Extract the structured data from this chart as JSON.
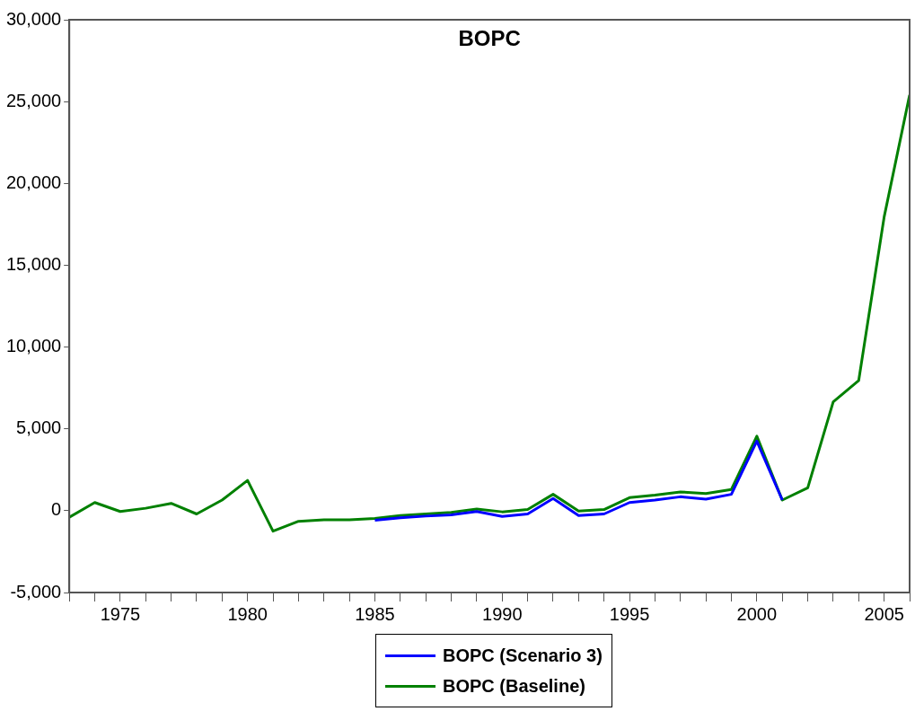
{
  "chart_data": {
    "type": "line",
    "title": "BOPC",
    "x": [
      1973,
      1974,
      1975,
      1976,
      1977,
      1978,
      1979,
      1980,
      1981,
      1982,
      1983,
      1984,
      1985,
      1986,
      1987,
      1988,
      1989,
      1990,
      1991,
      1992,
      1993,
      1994,
      1995,
      1996,
      1997,
      1998,
      1999,
      2000,
      2001,
      2002,
      2003,
      2004,
      2005,
      2006
    ],
    "series": [
      {
        "name": "BOPC (Scenario 3)",
        "color": "#0000ff",
        "values": [
          null,
          null,
          null,
          null,
          null,
          null,
          null,
          null,
          null,
          null,
          null,
          null,
          -580,
          -430,
          -330,
          -250,
          -50,
          -350,
          -200,
          750,
          -300,
          -200,
          500,
          650,
          850,
          700,
          1000,
          4250,
          650,
          null,
          null,
          null,
          null,
          null
        ]
      },
      {
        "name": "BOPC (Baseline)",
        "color": "#008000",
        "values": [
          -400,
          500,
          -50,
          150,
          450,
          -200,
          650,
          1850,
          -1250,
          -650,
          -550,
          -550,
          -480,
          -300,
          -200,
          -100,
          100,
          -70,
          70,
          1000,
          -20,
          70,
          800,
          950,
          1150,
          1050,
          1300,
          4550,
          650,
          1400,
          6650,
          7950,
          17950,
          25400
        ]
      }
    ],
    "xlim": [
      1973,
      2006
    ],
    "xticks": [
      {
        "value": 1973,
        "label": null
      },
      {
        "value": 1974,
        "label": null
      },
      1975,
      {
        "value": 1976,
        "label": null
      },
      {
        "value": 1977,
        "label": null
      },
      {
        "value": 1978,
        "label": null
      },
      {
        "value": 1979,
        "label": null
      },
      1980,
      {
        "value": 1981,
        "label": null
      },
      {
        "value": 1982,
        "label": null
      },
      {
        "value": 1983,
        "label": null
      },
      {
        "value": 1984,
        "label": null
      },
      1985,
      {
        "value": 1986,
        "label": null
      },
      {
        "value": 1987,
        "label": null
      },
      {
        "value": 1988,
        "label": null
      },
      {
        "value": 1989,
        "label": null
      },
      1990,
      {
        "value": 1991,
        "label": null
      },
      {
        "value": 1992,
        "label": null
      },
      {
        "value": 1993,
        "label": null
      },
      {
        "value": 1994,
        "label": null
      },
      1995,
      {
        "value": 1996,
        "label": null
      },
      {
        "value": 1997,
        "label": null
      },
      {
        "value": 1998,
        "label": null
      },
      {
        "value": 1999,
        "label": null
      },
      2000,
      {
        "value": 2001,
        "label": null
      },
      {
        "value": 2002,
        "label": null
      },
      {
        "value": 2003,
        "label": null
      },
      {
        "value": 2004,
        "label": null
      },
      2005,
      {
        "value": 2006,
        "label": null
      }
    ],
    "ylim": [
      -5000,
      30000
    ],
    "yticks": [
      {
        "value": -5000,
        "label": "-5,000"
      },
      0,
      {
        "value": 5000,
        "label": "5,000"
      },
      {
        "value": 10000,
        "label": "10,000"
      },
      {
        "value": 15000,
        "label": "15,000"
      },
      {
        "value": 20000,
        "label": "20,000"
      },
      {
        "value": 25000,
        "label": "25,000"
      },
      {
        "value": 30000,
        "label": "30,000"
      }
    ],
    "grid": false,
    "legend": "bottom",
    "marker": "none",
    "line_style": "solid"
  }
}
